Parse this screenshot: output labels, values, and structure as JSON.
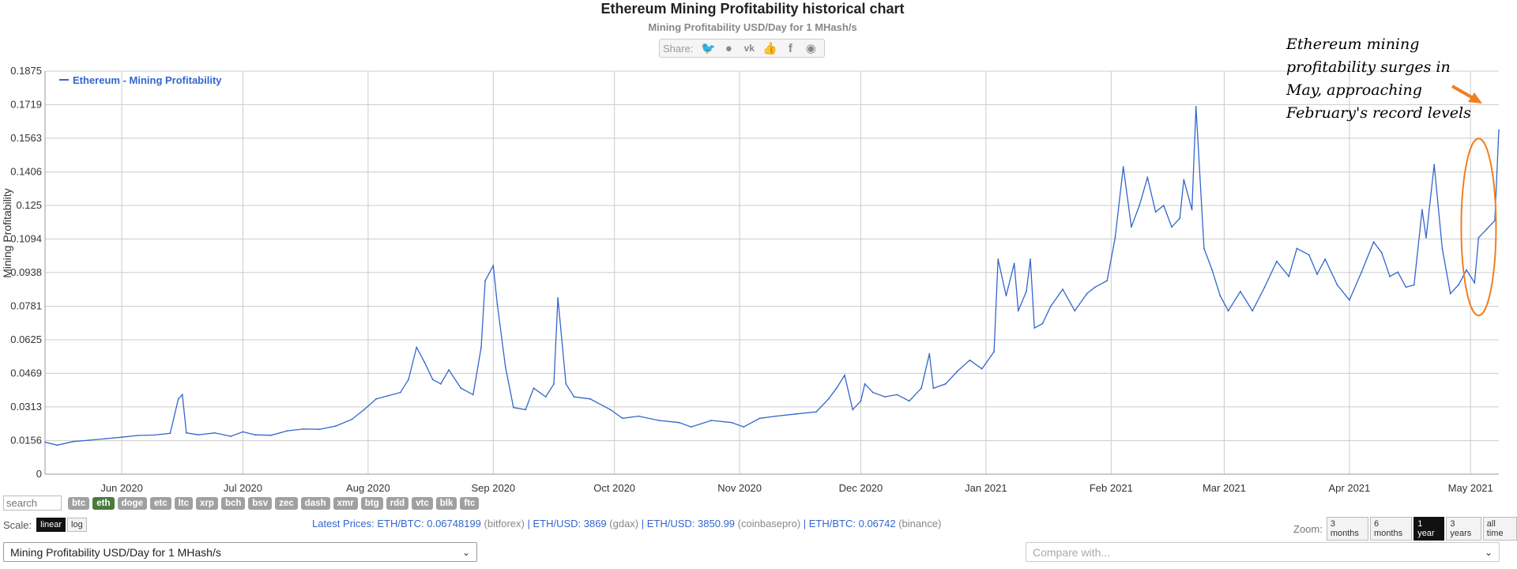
{
  "page": {
    "title": "Ethereum Mining Profitability historical chart",
    "subtitle": "Mining Profitability USD/Day for 1 MHash/s",
    "share_label": "Share:",
    "share_icons": [
      "twitter-icon",
      "reddit-icon",
      "vk-icon",
      "like-icon",
      "facebook-icon",
      "weibo-icon"
    ],
    "annotation": "Ethereum mining profitability surges in May, approaching February's record levels"
  },
  "controls": {
    "search_placeholder": "search",
    "coins": [
      "btc",
      "eth",
      "doge",
      "etc",
      "ltc",
      "xrp",
      "bch",
      "bsv",
      "zec",
      "dash",
      "xmr",
      "btg",
      "rdd",
      "vtc",
      "blk",
      "ftc"
    ],
    "active_coin": "eth",
    "scale_label": "Scale:",
    "scale_options": [
      "linear",
      "log"
    ],
    "active_scale": "linear",
    "zoom_label": "Zoom:",
    "zoom_options": [
      "3 months",
      "6 months",
      "1 year",
      "3 years",
      "all time"
    ],
    "active_zoom": "1 year",
    "metric_select": "Mining Profitability USD/Day for 1 MHash/s",
    "compare_placeholder": "Compare with..."
  },
  "prices": {
    "label": "Latest Prices:",
    "items": [
      {
        "text": "ETH/BTC: 0.06748199",
        "source": "(bitforex)"
      },
      {
        "text": "ETH/USD: 3869",
        "source": "(gdax)"
      },
      {
        "text": "ETH/USD: 3850.99",
        "source": "(coinbasepro)"
      },
      {
        "text": "ETH/BTC: 0.06742",
        "source": "(binance)"
      }
    ]
  },
  "colors": {
    "series": "#3366cc",
    "highlight": "#f07f21",
    "grid": "#cccccc"
  },
  "chart_data": {
    "type": "line",
    "title": "Ethereum Mining Profitability historical chart",
    "subtitle": "Mining Profitability USD/Day for 1 MHash/s",
    "ylabel": "Mining Profitability",
    "xlabel": "",
    "ylim": [
      0,
      0.1875
    ],
    "xlim": [
      "2020-05-13",
      "2021-05-08"
    ],
    "y_ticks": [
      "0",
      "0.0156",
      "0.0313",
      "0.0469",
      "0.0625",
      "0.0781",
      "0.0938",
      "0.1094",
      "0.125",
      "0.1406",
      "0.1563",
      "0.1719",
      "0.1875"
    ],
    "x_ticks": [
      {
        "label": "Jun 2020",
        "date": "2020-06-01"
      },
      {
        "label": "Jul 2020",
        "date": "2020-07-01"
      },
      {
        "label": "Aug 2020",
        "date": "2020-08-01"
      },
      {
        "label": "Sep 2020",
        "date": "2020-09-01"
      },
      {
        "label": "Oct 2020",
        "date": "2020-10-01"
      },
      {
        "label": "Nov 2020",
        "date": "2020-11-01"
      },
      {
        "label": "Dec 2020",
        "date": "2020-12-01"
      },
      {
        "label": "Jan 2021",
        "date": "2021-01-01"
      },
      {
        "label": "Feb 2021",
        "date": "2021-02-01"
      },
      {
        "label": "Mar 2021",
        "date": "2021-03-01"
      },
      {
        "label": "Apr 2021",
        "date": "2021-04-01"
      },
      {
        "label": "May 2021",
        "date": "2021-05-01"
      }
    ],
    "grid": true,
    "legend": "top-left",
    "series": [
      {
        "name": "Ethereum - Mining Profitability",
        "points": [
          [
            "2020-05-13",
            0.0149
          ],
          [
            "2020-05-16",
            0.0135
          ],
          [
            "2020-05-20",
            0.0152
          ],
          [
            "2020-05-24",
            0.0158
          ],
          [
            "2020-05-28",
            0.0165
          ],
          [
            "2020-06-01",
            0.0172
          ],
          [
            "2020-06-05",
            0.018
          ],
          [
            "2020-06-09",
            0.0182
          ],
          [
            "2020-06-13",
            0.019
          ],
          [
            "2020-06-15",
            0.035
          ],
          [
            "2020-06-16",
            0.037
          ],
          [
            "2020-06-17",
            0.0192
          ],
          [
            "2020-06-20",
            0.0183
          ],
          [
            "2020-06-24",
            0.0192
          ],
          [
            "2020-06-28",
            0.0176
          ],
          [
            "2020-07-01",
            0.0197
          ],
          [
            "2020-07-04",
            0.0183
          ],
          [
            "2020-07-08",
            0.0181
          ],
          [
            "2020-07-12",
            0.0202
          ],
          [
            "2020-07-16",
            0.021
          ],
          [
            "2020-07-20",
            0.0209
          ],
          [
            "2020-07-24",
            0.0224
          ],
          [
            "2020-07-28",
            0.0255
          ],
          [
            "2020-07-31",
            0.03
          ],
          [
            "2020-08-03",
            0.035
          ],
          [
            "2020-08-06",
            0.0365
          ],
          [
            "2020-08-09",
            0.038
          ],
          [
            "2020-08-11",
            0.044
          ],
          [
            "2020-08-13",
            0.059
          ],
          [
            "2020-08-15",
            0.052
          ],
          [
            "2020-08-17",
            0.044
          ],
          [
            "2020-08-19",
            0.042
          ],
          [
            "2020-08-21",
            0.0485
          ],
          [
            "2020-08-24",
            0.04
          ],
          [
            "2020-08-27",
            0.037
          ],
          [
            "2020-08-29",
            0.059
          ],
          [
            "2020-08-30",
            0.09
          ],
          [
            "2020-09-01",
            0.097
          ],
          [
            "2020-09-02",
            0.079
          ],
          [
            "2020-09-04",
            0.05
          ],
          [
            "2020-09-06",
            0.031
          ],
          [
            "2020-09-09",
            0.03
          ],
          [
            "2020-09-11",
            0.04
          ],
          [
            "2020-09-14",
            0.036
          ],
          [
            "2020-09-16",
            0.042
          ],
          [
            "2020-09-17",
            0.082
          ],
          [
            "2020-09-19",
            0.042
          ],
          [
            "2020-09-21",
            0.036
          ],
          [
            "2020-09-25",
            0.035
          ],
          [
            "2020-09-30",
            0.03
          ],
          [
            "2020-10-03",
            0.026
          ],
          [
            "2020-10-07",
            0.027
          ],
          [
            "2020-10-12",
            0.025
          ],
          [
            "2020-10-17",
            0.024
          ],
          [
            "2020-10-20",
            0.022
          ],
          [
            "2020-10-25",
            0.025
          ],
          [
            "2020-10-30",
            0.024
          ],
          [
            "2020-11-02",
            0.022
          ],
          [
            "2020-11-06",
            0.026
          ],
          [
            "2020-11-10",
            0.027
          ],
          [
            "2020-11-15",
            0.028
          ],
          [
            "2020-11-20",
            0.029
          ],
          [
            "2020-11-23",
            0.035
          ],
          [
            "2020-11-25",
            0.04
          ],
          [
            "2020-11-27",
            0.046
          ],
          [
            "2020-11-29",
            0.03
          ],
          [
            "2020-12-01",
            0.034
          ],
          [
            "2020-12-02",
            0.042
          ],
          [
            "2020-12-04",
            0.038
          ],
          [
            "2020-12-07",
            0.036
          ],
          [
            "2020-12-10",
            0.037
          ],
          [
            "2020-12-13",
            0.034
          ],
          [
            "2020-12-16",
            0.04
          ],
          [
            "2020-12-18",
            0.056
          ],
          [
            "2020-12-19",
            0.04
          ],
          [
            "2020-12-22",
            0.042
          ],
          [
            "2020-12-25",
            0.048
          ],
          [
            "2020-12-28",
            0.053
          ],
          [
            "2020-12-31",
            0.049
          ],
          [
            "2021-01-03",
            0.057
          ],
          [
            "2021-01-04",
            0.1
          ],
          [
            "2021-01-06",
            0.083
          ],
          [
            "2021-01-08",
            0.098
          ],
          [
            "2021-01-09",
            0.076
          ],
          [
            "2021-01-11",
            0.085
          ],
          [
            "2021-01-12",
            0.1
          ],
          [
            "2021-01-13",
            0.068
          ],
          [
            "2021-01-15",
            0.07
          ],
          [
            "2021-01-17",
            0.078
          ],
          [
            "2021-01-20",
            0.086
          ],
          [
            "2021-01-23",
            0.076
          ],
          [
            "2021-01-26",
            0.084
          ],
          [
            "2021-01-28",
            0.087
          ],
          [
            "2021-01-31",
            0.09
          ],
          [
            "2021-02-02",
            0.11
          ],
          [
            "2021-02-04",
            0.143
          ],
          [
            "2021-02-06",
            0.115
          ],
          [
            "2021-02-08",
            0.125
          ],
          [
            "2021-02-10",
            0.138
          ],
          [
            "2021-02-12",
            0.122
          ],
          [
            "2021-02-14",
            0.125
          ],
          [
            "2021-02-16",
            0.115
          ],
          [
            "2021-02-18",
            0.119
          ],
          [
            "2021-02-19",
            0.137
          ],
          [
            "2021-02-21",
            0.123
          ],
          [
            "2021-02-22",
            0.171
          ],
          [
            "2021-02-24",
            0.105
          ],
          [
            "2021-02-26",
            0.095
          ],
          [
            "2021-02-28",
            0.083
          ],
          [
            "2021-03-02",
            0.076
          ],
          [
            "2021-03-05",
            0.085
          ],
          [
            "2021-03-08",
            0.076
          ],
          [
            "2021-03-11",
            0.087
          ],
          [
            "2021-03-14",
            0.099
          ],
          [
            "2021-03-17",
            0.092
          ],
          [
            "2021-03-19",
            0.105
          ],
          [
            "2021-03-22",
            0.102
          ],
          [
            "2021-03-24",
            0.093
          ],
          [
            "2021-03-26",
            0.1
          ],
          [
            "2021-03-29",
            0.088
          ],
          [
            "2021-04-01",
            0.081
          ],
          [
            "2021-04-04",
            0.094
          ],
          [
            "2021-04-07",
            0.108
          ],
          [
            "2021-04-09",
            0.103
          ],
          [
            "2021-04-11",
            0.092
          ],
          [
            "2021-04-13",
            0.094
          ],
          [
            "2021-04-15",
            0.087
          ],
          [
            "2021-04-17",
            0.088
          ],
          [
            "2021-04-19",
            0.123
          ],
          [
            "2021-04-20",
            0.11
          ],
          [
            "2021-04-22",
            0.144
          ],
          [
            "2021-04-24",
            0.105
          ],
          [
            "2021-04-26",
            0.084
          ],
          [
            "2021-04-28",
            0.088
          ],
          [
            "2021-04-30",
            0.095
          ],
          [
            "2021-05-02",
            0.089
          ],
          [
            "2021-05-03",
            0.11
          ],
          [
            "2021-05-05",
            0.114
          ],
          [
            "2021-05-07",
            0.118
          ],
          [
            "2021-05-08",
            0.16
          ]
        ]
      }
    ]
  }
}
